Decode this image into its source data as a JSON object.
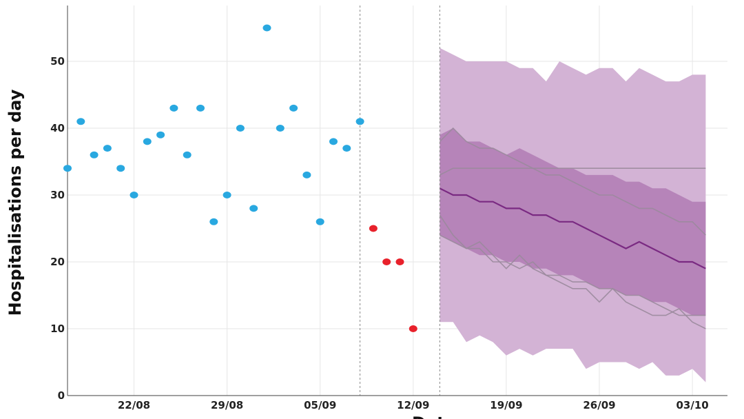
{
  "chart_data": {
    "type": "scatter",
    "title": "",
    "xlabel": "Dat",
    "ylabel": "Hospitalisations per day",
    "x_tick_labels": [
      "22/08",
      "29/08",
      "05/09",
      "12/09",
      "19/09",
      "26/09",
      "03/10"
    ],
    "y_ticks": [
      0,
      10,
      20,
      30,
      40,
      50
    ],
    "ylim": [
      0,
      57
    ],
    "xlim": [
      "2020-08-17",
      "2020-10-05"
    ],
    "grid": true,
    "vertical_markers": [
      "2020-09-08",
      "2020-09-14"
    ],
    "colors": {
      "observed": "#29a8e0",
      "recent": "#e8212b",
      "outer_band": "#d3b3d5",
      "inner_band": "#b07bb4",
      "median": "#7a2a82",
      "simulations": "#9a8a9c",
      "grid": "#e6e6e6",
      "marker": "#888888"
    },
    "series": [
      {
        "kind": "points",
        "role": "observed",
        "x": [
          "2020-08-17",
          "2020-08-18",
          "2020-08-19",
          "2020-08-20",
          "2020-08-21",
          "2020-08-22",
          "2020-08-23",
          "2020-08-24",
          "2020-08-25",
          "2020-08-26",
          "2020-08-27",
          "2020-08-28",
          "2020-08-29",
          "2020-08-30",
          "2020-08-31",
          "2020-09-01",
          "2020-09-02",
          "2020-09-03",
          "2020-09-04",
          "2020-09-05",
          "2020-09-06",
          "2020-09-07",
          "2020-09-08"
        ],
        "y": [
          34,
          41,
          36,
          37,
          34,
          30,
          38,
          39,
          43,
          36,
          43,
          26,
          30,
          40,
          28,
          55,
          40,
          43,
          33,
          26,
          38,
          37,
          41
        ]
      },
      {
        "kind": "points",
        "role": "recent",
        "x": [
          "2020-09-09",
          "2020-09-10",
          "2020-09-11",
          "2020-09-12"
        ],
        "y": [
          25,
          20,
          20,
          10
        ]
      },
      {
        "kind": "band",
        "role": "outer",
        "x": [
          "2020-09-14",
          "2020-09-15",
          "2020-09-16",
          "2020-09-17",
          "2020-09-18",
          "2020-09-19",
          "2020-09-20",
          "2020-09-21",
          "2020-09-22",
          "2020-09-23",
          "2020-09-24",
          "2020-09-25",
          "2020-09-26",
          "2020-09-27",
          "2020-09-28",
          "2020-09-29",
          "2020-09-30",
          "2020-10-01",
          "2020-10-02",
          "2020-10-03",
          "2020-10-04"
        ],
        "upper": [
          52,
          51,
          50,
          50,
          50,
          50,
          49,
          49,
          47,
          50,
          49,
          48,
          49,
          49,
          47,
          49,
          48,
          47,
          47,
          48,
          48
        ],
        "lower": [
          11,
          11,
          8,
          9,
          8,
          6,
          7,
          6,
          7,
          7,
          7,
          4,
          5,
          5,
          5,
          4,
          5,
          3,
          3,
          4,
          2
        ]
      },
      {
        "kind": "band",
        "role": "inner",
        "x": [
          "2020-09-14",
          "2020-09-15",
          "2020-09-16",
          "2020-09-17",
          "2020-09-18",
          "2020-09-19",
          "2020-09-20",
          "2020-09-21",
          "2020-09-22",
          "2020-09-23",
          "2020-09-24",
          "2020-09-25",
          "2020-09-26",
          "2020-09-27",
          "2020-09-28",
          "2020-09-29",
          "2020-09-30",
          "2020-10-01",
          "2020-10-02",
          "2020-10-03",
          "2020-10-04"
        ],
        "upper": [
          39,
          40,
          38,
          38,
          37,
          36,
          37,
          36,
          35,
          34,
          34,
          33,
          33,
          33,
          32,
          32,
          31,
          31,
          30,
          29,
          29
        ],
        "lower": [
          24,
          23,
          22,
          21,
          21,
          20,
          20,
          19,
          19,
          18,
          18,
          17,
          16,
          16,
          15,
          15,
          14,
          14,
          13,
          12,
          12
        ]
      },
      {
        "kind": "line",
        "role": "median",
        "x": [
          "2020-09-14",
          "2020-09-15",
          "2020-09-16",
          "2020-09-17",
          "2020-09-18",
          "2020-09-19",
          "2020-09-20",
          "2020-09-21",
          "2020-09-22",
          "2020-09-23",
          "2020-09-24",
          "2020-09-25",
          "2020-09-26",
          "2020-09-27",
          "2020-09-28",
          "2020-09-29",
          "2020-09-30",
          "2020-10-01",
          "2020-10-02",
          "2020-10-03",
          "2020-10-04"
        ],
        "y": [
          31,
          30,
          30,
          29,
          29,
          28,
          28,
          27,
          27,
          26,
          26,
          25,
          24,
          23,
          22,
          23,
          22,
          21,
          20,
          20,
          19
        ]
      },
      {
        "kind": "line",
        "role": "simulation",
        "x": [
          "2020-09-14",
          "2020-09-15",
          "2020-09-16",
          "2020-09-17",
          "2020-09-18",
          "2020-09-19",
          "2020-09-20",
          "2020-09-21",
          "2020-09-22",
          "2020-09-23",
          "2020-09-24",
          "2020-09-25",
          "2020-09-26",
          "2020-09-27",
          "2020-09-28",
          "2020-09-29",
          "2020-09-30",
          "2020-10-01",
          "2020-10-02",
          "2020-10-03",
          "2020-10-04"
        ],
        "y": [
          33,
          34,
          34,
          34,
          34,
          34,
          34,
          34,
          34,
          34,
          34,
          34,
          34,
          34,
          34,
          34,
          34,
          34,
          34,
          34,
          34
        ]
      },
      {
        "kind": "line",
        "role": "simulation",
        "x": [
          "2020-09-14",
          "2020-09-15",
          "2020-09-16",
          "2020-09-17",
          "2020-09-18",
          "2020-09-19",
          "2020-09-20",
          "2020-09-21",
          "2020-09-22",
          "2020-09-23",
          "2020-09-24",
          "2020-09-25",
          "2020-09-26",
          "2020-09-27",
          "2020-09-28",
          "2020-09-29",
          "2020-09-30",
          "2020-10-01",
          "2020-10-02",
          "2020-10-03",
          "2020-10-04"
        ],
        "y": [
          38,
          40,
          38,
          37,
          37,
          36,
          35,
          34,
          33,
          33,
          32,
          31,
          30,
          30,
          29,
          28,
          28,
          27,
          26,
          26,
          24
        ]
      },
      {
        "kind": "line",
        "role": "simulation",
        "x": [
          "2020-09-14",
          "2020-09-15",
          "2020-09-16",
          "2020-09-17",
          "2020-09-18",
          "2020-09-19",
          "2020-09-20",
          "2020-09-21",
          "2020-09-22",
          "2020-09-23",
          "2020-09-24",
          "2020-09-25",
          "2020-09-26",
          "2020-09-27",
          "2020-09-28",
          "2020-09-29",
          "2020-09-30",
          "2020-10-01",
          "2020-10-02",
          "2020-10-03",
          "2020-10-04"
        ],
        "y": [
          27,
          24,
          22,
          23,
          21,
          19,
          21,
          19,
          18,
          18,
          17,
          17,
          16,
          16,
          15,
          15,
          14,
          13,
          12,
          12,
          12
        ]
      },
      {
        "kind": "line",
        "role": "simulation",
        "x": [
          "2020-09-14",
          "2020-09-15",
          "2020-09-16",
          "2020-09-17",
          "2020-09-18",
          "2020-09-19",
          "2020-09-20",
          "2020-09-21",
          "2020-09-22",
          "2020-09-23",
          "2020-09-24",
          "2020-09-25",
          "2020-09-26",
          "2020-09-27",
          "2020-09-28",
          "2020-09-29",
          "2020-09-30",
          "2020-10-01",
          "2020-10-02",
          "2020-10-03",
          "2020-10-04"
        ],
        "y": [
          24,
          23,
          22,
          22,
          20,
          20,
          19,
          20,
          18,
          17,
          16,
          16,
          14,
          16,
          14,
          13,
          12,
          12,
          13,
          11,
          10
        ]
      }
    ]
  }
}
